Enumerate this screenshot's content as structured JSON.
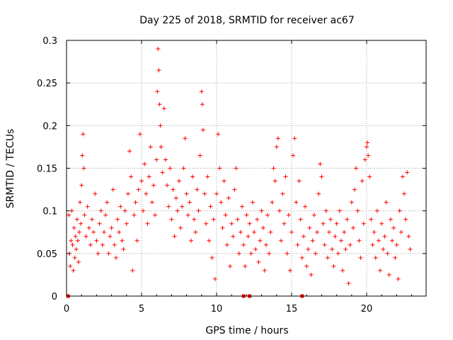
{
  "chart_data": {
    "type": "scatter",
    "title": "Day 225 of 2018, SRMTID for receiver ac67",
    "xlabel": "GPS time / hours",
    "ylabel": "SRMTID / TECUs",
    "xlim": [
      0,
      24
    ],
    "ylim": [
      0,
      0.3
    ],
    "xticks": [
      0,
      5,
      10,
      15,
      20
    ],
    "xtick_labels": [
      "0",
      "5",
      "10",
      "15",
      "20"
    ],
    "yticks": [
      0,
      0.05,
      0.1,
      0.15,
      0.2,
      0.25,
      0.3
    ],
    "ytick_labels": [
      "0",
      "0.05",
      "0.1",
      "0.15",
      "0.2",
      "0.25",
      "0.3"
    ],
    "grid": true,
    "marker": "plus",
    "color": "#ff0000",
    "series": [
      {
        "name": "SRMTID",
        "points": [
          [
            0.15,
            0.095
          ],
          [
            0.2,
            0.05
          ],
          [
            0.25,
            0.035
          ],
          [
            0.3,
            0.065
          ],
          [
            0.35,
            0.1
          ],
          [
            0.4,
            0.06
          ],
          [
            0.45,
            0.03
          ],
          [
            0.5,
            0.08
          ],
          [
            0.55,
            0.045
          ],
          [
            0.6,
            0.07
          ],
          [
            0.65,
            0.055
          ],
          [
            0.7,
            0.09
          ],
          [
            0.75,
            0.065
          ],
          [
            0.8,
            0.04
          ],
          [
            0.85,
            0.075
          ],
          [
            0.9,
            0.11
          ],
          [
            0.95,
            0.085
          ],
          [
            1.0,
            0.13
          ],
          [
            1.05,
            0.165
          ],
          [
            1.1,
            0.19
          ],
          [
            1.15,
            0.15
          ],
          [
            1.2,
            0.095
          ],
          [
            1.3,
            0.07
          ],
          [
            1.4,
            0.105
          ],
          [
            1.5,
            0.08
          ],
          [
            1.6,
            0.06
          ],
          [
            1.7,
            0.09
          ],
          [
            1.8,
            0.075
          ],
          [
            1.9,
            0.12
          ],
          [
            2.0,
            0.065
          ],
          [
            2.1,
            0.05
          ],
          [
            2.2,
            0.085
          ],
          [
            2.3,
            0.1
          ],
          [
            2.4,
            0.06
          ],
          [
            2.5,
            0.075
          ],
          [
            2.6,
            0.095
          ],
          [
            2.7,
            0.11
          ],
          [
            2.8,
            0.05
          ],
          [
            2.9,
            0.07
          ],
          [
            3.0,
            0.08
          ],
          [
            3.1,
            0.125
          ],
          [
            3.2,
            0.06
          ],
          [
            3.3,
            0.045
          ],
          [
            3.4,
            0.09
          ],
          [
            3.5,
            0.075
          ],
          [
            3.6,
            0.105
          ],
          [
            3.7,
            0.065
          ],
          [
            3.8,
            0.055
          ],
          [
            3.9,
            0.1
          ],
          [
            4.0,
            0.085
          ],
          [
            4.1,
            0.12
          ],
          [
            4.2,
            0.17
          ],
          [
            4.3,
            0.14
          ],
          [
            4.4,
            0.03
          ],
          [
            4.5,
            0.095
          ],
          [
            4.6,
            0.11
          ],
          [
            4.7,
            0.065
          ],
          [
            4.8,
            0.125
          ],
          [
            4.9,
            0.19
          ],
          [
            5.0,
            0.135
          ],
          [
            5.1,
            0.1
          ],
          [
            5.2,
            0.155
          ],
          [
            5.3,
            0.12
          ],
          [
            5.4,
            0.085
          ],
          [
            5.5,
            0.14
          ],
          [
            5.6,
            0.175
          ],
          [
            5.7,
            0.11
          ],
          [
            5.8,
            0.13
          ],
          [
            5.9,
            0.095
          ],
          [
            6.0,
            0.16
          ],
          [
            6.05,
            0.24
          ],
          [
            6.1,
            0.29
          ],
          [
            6.15,
            0.265
          ],
          [
            6.2,
            0.225
          ],
          [
            6.25,
            0.2
          ],
          [
            6.3,
            0.175
          ],
          [
            6.4,
            0.145
          ],
          [
            6.5,
            0.22
          ],
          [
            6.6,
            0.16
          ],
          [
            6.7,
            0.13
          ],
          [
            6.8,
            0.105
          ],
          [
            6.9,
            0.15
          ],
          [
            7.0,
            0.09
          ],
          [
            7.1,
            0.125
          ],
          [
            7.2,
            0.07
          ],
          [
            7.3,
            0.115
          ],
          [
            7.4,
            0.1
          ],
          [
            7.5,
            0.135
          ],
          [
            7.6,
            0.08
          ],
          [
            7.7,
            0.105
          ],
          [
            7.8,
            0.15
          ],
          [
            7.9,
            0.185
          ],
          [
            8.0,
            0.12
          ],
          [
            8.1,
            0.095
          ],
          [
            8.2,
            0.11
          ],
          [
            8.3,
            0.065
          ],
          [
            8.4,
            0.14
          ],
          [
            8.5,
            0.09
          ],
          [
            8.6,
            0.075
          ],
          [
            8.7,
            0.125
          ],
          [
            8.8,
            0.1
          ],
          [
            8.9,
            0.165
          ],
          [
            9.0,
            0.24
          ],
          [
            9.05,
            0.225
          ],
          [
            9.1,
            0.195
          ],
          [
            9.2,
            0.12
          ],
          [
            9.3,
            0.085
          ],
          [
            9.4,
            0.14
          ],
          [
            9.5,
            0.065
          ],
          [
            9.6,
            0.105
          ],
          [
            9.7,
            0.045
          ],
          [
            9.8,
            0.09
          ],
          [
            9.9,
            0.02
          ],
          [
            10.0,
            0.12
          ],
          [
            10.1,
            0.19
          ],
          [
            10.2,
            0.15
          ],
          [
            10.3,
            0.11
          ],
          [
            10.4,
            0.08
          ],
          [
            10.5,
            0.135
          ],
          [
            10.6,
            0.095
          ],
          [
            10.7,
            0.06
          ],
          [
            10.8,
            0.115
          ],
          [
            10.9,
            0.035
          ],
          [
            11.0,
            0.085
          ],
          [
            11.1,
            0.07
          ],
          [
            11.2,
            0.125
          ],
          [
            11.3,
            0.15
          ],
          [
            11.4,
            0.09
          ],
          [
            11.5,
            0.05
          ],
          [
            11.6,
            0.075
          ],
          [
            11.7,
            0.105
          ],
          [
            11.8,
            0.06
          ],
          [
            11.9,
            0.035
          ],
          [
            12.0,
            0.095
          ],
          [
            12.1,
            0.07
          ],
          [
            12.2,
            0.085
          ],
          [
            12.3,
            0.05
          ],
          [
            12.4,
            0.11
          ],
          [
            12.5,
            0.075
          ],
          [
            12.6,
            0.055
          ],
          [
            12.7,
            0.09
          ],
          [
            12.8,
            0.04
          ],
          [
            12.9,
            0.065
          ],
          [
            13.0,
            0.1
          ],
          [
            13.1,
            0.08
          ],
          [
            13.2,
            0.03
          ],
          [
            13.3,
            0.06
          ],
          [
            13.4,
            0.095
          ],
          [
            13.5,
            0.05
          ],
          [
            13.6,
            0.075
          ],
          [
            13.7,
            0.11
          ],
          [
            13.8,
            0.15
          ],
          [
            13.9,
            0.135
          ],
          [
            14.0,
            0.175
          ],
          [
            14.1,
            0.185
          ],
          [
            14.2,
            0.1
          ],
          [
            14.3,
            0.065
          ],
          [
            14.4,
            0.12
          ],
          [
            14.5,
            0.085
          ],
          [
            14.6,
            0.14
          ],
          [
            14.7,
            0.05
          ],
          [
            14.8,
            0.095
          ],
          [
            14.9,
            0.03
          ],
          [
            15.0,
            0.075
          ],
          [
            15.1,
            0.165
          ],
          [
            15.2,
            0.185
          ],
          [
            15.3,
            0.11
          ],
          [
            15.4,
            0.06
          ],
          [
            15.5,
            0.135
          ],
          [
            15.6,
            0.09
          ],
          [
            15.7,
            0.045
          ],
          [
            15.8,
            0.07
          ],
          [
            15.9,
            0.105
          ],
          [
            16.0,
            0.035
          ],
          [
            16.1,
            0.055
          ],
          [
            16.2,
            0.08
          ],
          [
            16.3,
            0.025
          ],
          [
            16.4,
            0.065
          ],
          [
            16.5,
            0.095
          ],
          [
            16.6,
            0.05
          ],
          [
            16.7,
            0.075
          ],
          [
            16.8,
            0.12
          ],
          [
            16.9,
            0.155
          ],
          [
            17.0,
            0.14
          ],
          [
            17.1,
            0.085
          ],
          [
            17.2,
            0.06
          ],
          [
            17.3,
            0.1
          ],
          [
            17.4,
            0.045
          ],
          [
            17.5,
            0.075
          ],
          [
            17.6,
            0.09
          ],
          [
            17.7,
            0.055
          ],
          [
            17.8,
            0.035
          ],
          [
            17.9,
            0.07
          ],
          [
            18.0,
            0.085
          ],
          [
            18.1,
            0.05
          ],
          [
            18.2,
            0.1
          ],
          [
            18.3,
            0.065
          ],
          [
            18.4,
            0.03
          ],
          [
            18.5,
            0.075
          ],
          [
            18.6,
            0.055
          ],
          [
            18.7,
            0.09
          ],
          [
            18.8,
            0.015
          ],
          [
            18.9,
            0.06
          ],
          [
            19.0,
            0.11
          ],
          [
            19.1,
            0.08
          ],
          [
            19.2,
            0.125
          ],
          [
            19.3,
            0.15
          ],
          [
            19.4,
            0.1
          ],
          [
            19.5,
            0.065
          ],
          [
            19.6,
            0.045
          ],
          [
            19.7,
            0.135
          ],
          [
            19.8,
            0.085
          ],
          [
            19.9,
            0.16
          ],
          [
            20.0,
            0.175
          ],
          [
            20.05,
            0.18
          ],
          [
            20.1,
            0.165
          ],
          [
            20.2,
            0.14
          ],
          [
            20.3,
            0.09
          ],
          [
            20.4,
            0.06
          ],
          [
            20.5,
            0.075
          ],
          [
            20.6,
            0.045
          ],
          [
            20.7,
            0.1
          ],
          [
            20.8,
            0.065
          ],
          [
            20.9,
            0.03
          ],
          [
            21.0,
            0.085
          ],
          [
            21.1,
            0.055
          ],
          [
            21.2,
            0.07
          ],
          [
            21.3,
            0.11
          ],
          [
            21.4,
            0.05
          ],
          [
            21.5,
            0.025
          ],
          [
            21.6,
            0.09
          ],
          [
            21.7,
            0.065
          ],
          [
            21.8,
            0.08
          ],
          [
            21.9,
            0.045
          ],
          [
            22.0,
            0.06
          ],
          [
            22.1,
            0.02
          ],
          [
            22.2,
            0.1
          ],
          [
            22.3,
            0.075
          ],
          [
            22.4,
            0.14
          ],
          [
            22.5,
            0.12
          ],
          [
            22.6,
            0.09
          ],
          [
            22.7,
            0.145
          ],
          [
            22.8,
            0.07
          ],
          [
            22.9,
            0.055
          ]
        ]
      }
    ],
    "zero_marks_x": [
      0.1,
      11.8,
      12.2,
      15.7
    ]
  }
}
